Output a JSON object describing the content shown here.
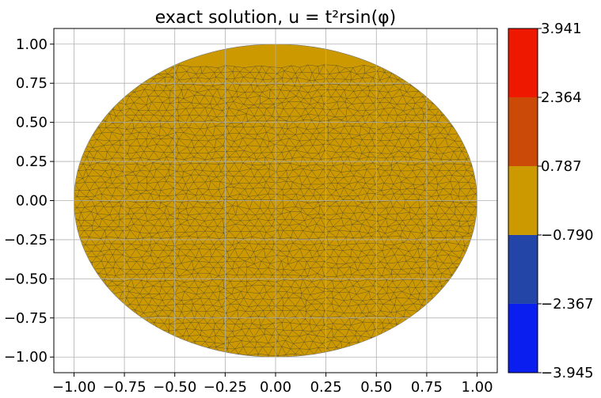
{
  "chart_data": {
    "type": "heatmap",
    "title": "exact solution, u = t²rsin(φ)",
    "xlabel": "",
    "ylabel": "",
    "xlim": [
      -1.1,
      1.1
    ],
    "ylim": [
      -1.1,
      1.1
    ],
    "x_ticks": [
      "−1.00",
      "−0.75",
      "−0.50",
      "−0.25",
      "0.00",
      "0.25",
      "0.50",
      "0.75",
      "1.00"
    ],
    "x_tick_values": [
      -1.0,
      -0.75,
      -0.5,
      -0.25,
      0.0,
      0.25,
      0.5,
      0.75,
      1.0
    ],
    "y_ticks": [
      "−1.00",
      "−0.75",
      "−0.50",
      "−0.25",
      "0.00",
      "0.25",
      "0.50",
      "0.75",
      "1.00"
    ],
    "y_tick_values": [
      -1.0,
      -0.75,
      -0.5,
      -0.25,
      0.0,
      0.25,
      0.5,
      0.75,
      1.0
    ],
    "grid": true,
    "domain": "unit disk, triangulated mesh",
    "field_color": "#cc9a00",
    "mesh_color": "#3a3a3a",
    "colorbar": {
      "ticks": [
        "3.941",
        "2.364",
        "0.787",
        "−0.790",
        "−2.367",
        "−3.945"
      ],
      "tick_values": [
        3.941,
        2.364,
        0.787,
        -0.79,
        -2.367,
        -3.945
      ],
      "bands": [
        {
          "from": -3.945,
          "to": -2.367,
          "color": "#0a1ef0"
        },
        {
          "from": -2.367,
          "to": -0.79,
          "color": "#2345a8"
        },
        {
          "from": -0.79,
          "to": 0.787,
          "color": "#cc9a00"
        },
        {
          "from": 0.787,
          "to": 2.364,
          "color": "#cc4a08"
        },
        {
          "from": 2.364,
          "to": 3.941,
          "color": "#ee1800"
        }
      ]
    }
  }
}
